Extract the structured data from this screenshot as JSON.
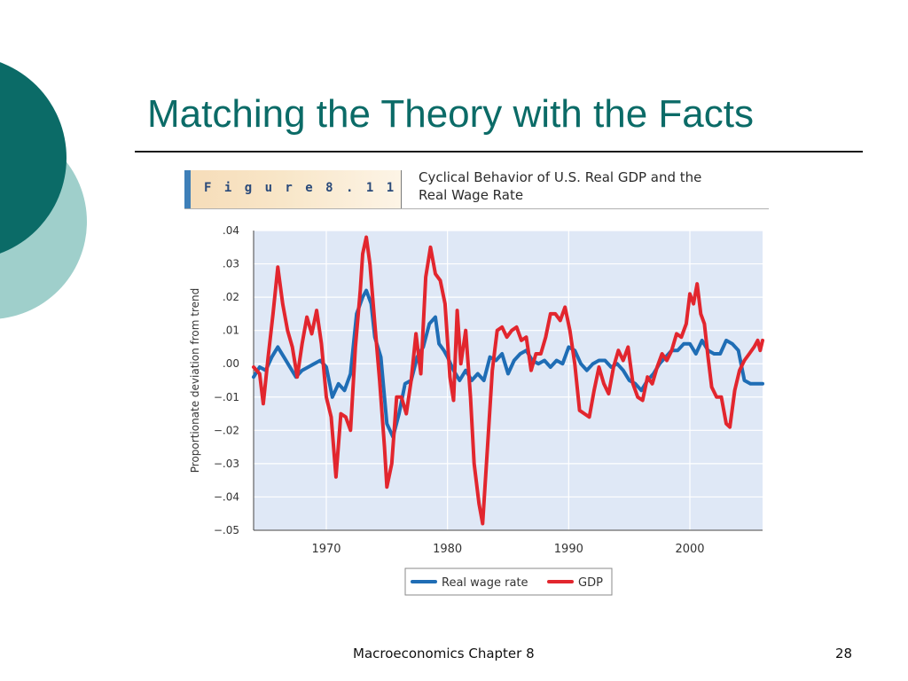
{
  "slide": {
    "title": "Matching the Theory with the Facts",
    "footer": "Macroeconomics Chapter 8",
    "page_number": "28"
  },
  "figure": {
    "label": "F i g u r e   8 . 1 1",
    "caption_line1": "Cyclical Behavior of U.S. Real GDP and the",
    "caption_line2": "Real Wage Rate"
  },
  "colors": {
    "theme_dark": "#0b6b67",
    "theme_light": "#9fcfcb",
    "plot_bg": "#dfe8f6",
    "wage": "#1f6db5",
    "gdp": "#e2262e"
  },
  "chart_data": {
    "type": "line",
    "title": "Cyclical Behavior of U.S. Real GDP and the Real Wage Rate",
    "xlabel": "",
    "ylabel": "Proportionate deviation from trend",
    "xlim": [
      1964,
      2006
    ],
    "ylim": [
      -0.05,
      0.04
    ],
    "x_ticks": [
      1970,
      1980,
      1990,
      2000
    ],
    "y_ticks": [
      {
        "value": 0.04,
        "label": ".04"
      },
      {
        "value": 0.03,
        "label": ".03"
      },
      {
        "value": 0.02,
        "label": ".02"
      },
      {
        "value": 0.01,
        "label": ".01"
      },
      {
        "value": 0.0,
        "label": ".00"
      },
      {
        "value": -0.01,
        "label": "−.01"
      },
      {
        "value": -0.02,
        "label": "−.02"
      },
      {
        "value": -0.03,
        "label": "−.03"
      },
      {
        "value": -0.04,
        "label": "−.04"
      },
      {
        "value": -0.05,
        "label": "−.05"
      }
    ],
    "grid": true,
    "legend_position": "bottom-center",
    "series": [
      {
        "name": "Real wage rate",
        "color": "#1f6db5",
        "points": [
          [
            1964.0,
            -0.004
          ],
          [
            1964.5,
            -0.001
          ],
          [
            1965.0,
            -0.002
          ],
          [
            1965.5,
            0.002
          ],
          [
            1966.0,
            0.005
          ],
          [
            1966.5,
            0.002
          ],
          [
            1967.0,
            -0.001
          ],
          [
            1967.5,
            -0.004
          ],
          [
            1968.0,
            -0.002
          ],
          [
            1968.5,
            -0.001
          ],
          [
            1969.0,
            0.0
          ],
          [
            1969.5,
            0.001
          ],
          [
            1970.0,
            -0.001
          ],
          [
            1970.5,
            -0.01
          ],
          [
            1971.0,
            -0.006
          ],
          [
            1971.5,
            -0.008
          ],
          [
            1972.0,
            -0.003
          ],
          [
            1972.5,
            0.015
          ],
          [
            1973.0,
            0.02
          ],
          [
            1973.3,
            0.022
          ],
          [
            1973.7,
            0.018
          ],
          [
            1974.0,
            0.008
          ],
          [
            1974.5,
            0.002
          ],
          [
            1975.0,
            -0.018
          ],
          [
            1975.5,
            -0.022
          ],
          [
            1976.0,
            -0.015
          ],
          [
            1976.5,
            -0.006
          ],
          [
            1977.0,
            -0.005
          ],
          [
            1977.5,
            0.002
          ],
          [
            1978.0,
            0.005
          ],
          [
            1978.5,
            0.012
          ],
          [
            1979.0,
            0.014
          ],
          [
            1979.3,
            0.006
          ],
          [
            1979.7,
            0.004
          ],
          [
            1980.0,
            0.002
          ],
          [
            1980.5,
            -0.002
          ],
          [
            1981.0,
            -0.005
          ],
          [
            1981.5,
            -0.002
          ],
          [
            1982.0,
            -0.005
          ],
          [
            1982.5,
            -0.003
          ],
          [
            1983.0,
            -0.005
          ],
          [
            1983.5,
            0.002
          ],
          [
            1984.0,
            0.001
          ],
          [
            1984.5,
            0.003
          ],
          [
            1985.0,
            -0.003
          ],
          [
            1985.5,
            0.001
          ],
          [
            1986.0,
            0.003
          ],
          [
            1986.5,
            0.004
          ],
          [
            1987.0,
            0.001
          ],
          [
            1987.5,
            0.0
          ],
          [
            1988.0,
            0.001
          ],
          [
            1988.5,
            -0.001
          ],
          [
            1989.0,
            0.001
          ],
          [
            1989.5,
            0.0
          ],
          [
            1990.0,
            0.005
          ],
          [
            1990.5,
            0.004
          ],
          [
            1991.0,
            0.0
          ],
          [
            1991.5,
            -0.002
          ],
          [
            1992.0,
            0.0
          ],
          [
            1992.5,
            0.001
          ],
          [
            1993.0,
            0.001
          ],
          [
            1993.5,
            -0.001
          ],
          [
            1994.0,
            0.0
          ],
          [
            1994.5,
            -0.002
          ],
          [
            1995.0,
            -0.005
          ],
          [
            1995.5,
            -0.006
          ],
          [
            1996.0,
            -0.008
          ],
          [
            1996.5,
            -0.005
          ],
          [
            1997.0,
            -0.003
          ],
          [
            1997.5,
            0.0
          ],
          [
            1998.0,
            0.002
          ],
          [
            1998.5,
            0.004
          ],
          [
            1999.0,
            0.004
          ],
          [
            1999.5,
            0.006
          ],
          [
            2000.0,
            0.006
          ],
          [
            2000.5,
            0.003
          ],
          [
            2001.0,
            0.007
          ],
          [
            2001.5,
            0.004
          ],
          [
            2002.0,
            0.003
          ],
          [
            2002.5,
            0.003
          ],
          [
            2003.0,
            0.007
          ],
          [
            2003.5,
            0.006
          ],
          [
            2004.0,
            0.004
          ],
          [
            2004.5,
            -0.005
          ],
          [
            2005.0,
            -0.006
          ],
          [
            2005.5,
            -0.006
          ],
          [
            2006.0,
            -0.006
          ]
        ]
      },
      {
        "name": "GDP",
        "color": "#e2262e",
        "points": [
          [
            1964.0,
            -0.001
          ],
          [
            1964.5,
            -0.003
          ],
          [
            1964.8,
            -0.012
          ],
          [
            1965.2,
            0.002
          ],
          [
            1965.6,
            0.015
          ],
          [
            1966.0,
            0.029
          ],
          [
            1966.4,
            0.018
          ],
          [
            1966.8,
            0.01
          ],
          [
            1967.2,
            0.005
          ],
          [
            1967.6,
            -0.004
          ],
          [
            1968.0,
            0.006
          ],
          [
            1968.4,
            0.014
          ],
          [
            1968.8,
            0.009
          ],
          [
            1969.2,
            0.016
          ],
          [
            1969.6,
            0.006
          ],
          [
            1970.0,
            -0.01
          ],
          [
            1970.4,
            -0.016
          ],
          [
            1970.8,
            -0.034
          ],
          [
            1971.2,
            -0.015
          ],
          [
            1971.6,
            -0.016
          ],
          [
            1972.0,
            -0.02
          ],
          [
            1972.4,
            0.005
          ],
          [
            1972.8,
            0.022
          ],
          [
            1973.0,
            0.033
          ],
          [
            1973.3,
            0.038
          ],
          [
            1973.6,
            0.03
          ],
          [
            1974.0,
            0.012
          ],
          [
            1974.4,
            -0.005
          ],
          [
            1974.8,
            -0.025
          ],
          [
            1975.0,
            -0.037
          ],
          [
            1975.4,
            -0.03
          ],
          [
            1975.8,
            -0.01
          ],
          [
            1976.2,
            -0.01
          ],
          [
            1976.6,
            -0.015
          ],
          [
            1977.0,
            -0.005
          ],
          [
            1977.4,
            0.009
          ],
          [
            1977.8,
            -0.003
          ],
          [
            1978.2,
            0.026
          ],
          [
            1978.6,
            0.035
          ],
          [
            1979.0,
            0.027
          ],
          [
            1979.4,
            0.025
          ],
          [
            1979.8,
            0.018
          ],
          [
            1980.2,
            -0.004
          ],
          [
            1980.5,
            -0.011
          ],
          [
            1980.8,
            0.016
          ],
          [
            1981.1,
            0.0
          ],
          [
            1981.5,
            0.01
          ],
          [
            1981.9,
            -0.01
          ],
          [
            1982.2,
            -0.03
          ],
          [
            1982.6,
            -0.042
          ],
          [
            1982.9,
            -0.048
          ],
          [
            1983.3,
            -0.025
          ],
          [
            1983.7,
            -0.002
          ],
          [
            1984.1,
            0.01
          ],
          [
            1984.5,
            0.011
          ],
          [
            1984.9,
            0.008
          ],
          [
            1985.3,
            0.01
          ],
          [
            1985.7,
            0.011
          ],
          [
            1986.1,
            0.007
          ],
          [
            1986.5,
            0.008
          ],
          [
            1986.9,
            -0.002
          ],
          [
            1987.3,
            0.003
          ],
          [
            1987.7,
            0.003
          ],
          [
            1988.1,
            0.008
          ],
          [
            1988.5,
            0.015
          ],
          [
            1988.9,
            0.015
          ],
          [
            1989.3,
            0.013
          ],
          [
            1989.7,
            0.017
          ],
          [
            1990.1,
            0.01
          ],
          [
            1990.5,
            0.0
          ],
          [
            1990.9,
            -0.014
          ],
          [
            1991.3,
            -0.015
          ],
          [
            1991.7,
            -0.016
          ],
          [
            1992.1,
            -0.008
          ],
          [
            1992.5,
            -0.001
          ],
          [
            1992.9,
            -0.006
          ],
          [
            1993.3,
            -0.009
          ],
          [
            1993.7,
            -0.001
          ],
          [
            1994.1,
            0.004
          ],
          [
            1994.5,
            0.001
          ],
          [
            1994.9,
            0.005
          ],
          [
            1995.3,
            -0.006
          ],
          [
            1995.7,
            -0.01
          ],
          [
            1996.1,
            -0.011
          ],
          [
            1996.5,
            -0.004
          ],
          [
            1996.9,
            -0.006
          ],
          [
            1997.3,
            -0.001
          ],
          [
            1997.7,
            0.003
          ],
          [
            1998.1,
            0.001
          ],
          [
            1998.5,
            0.004
          ],
          [
            1998.9,
            0.009
          ],
          [
            1999.3,
            0.008
          ],
          [
            1999.7,
            0.012
          ],
          [
            2000.0,
            0.021
          ],
          [
            2000.3,
            0.018
          ],
          [
            2000.6,
            0.024
          ],
          [
            2000.9,
            0.015
          ],
          [
            2001.2,
            0.012
          ],
          [
            2001.5,
            0.002
          ],
          [
            2001.8,
            -0.007
          ],
          [
            2002.2,
            -0.01
          ],
          [
            2002.6,
            -0.01
          ],
          [
            2003.0,
            -0.018
          ],
          [
            2003.3,
            -0.019
          ],
          [
            2003.7,
            -0.008
          ],
          [
            2004.1,
            -0.002
          ],
          [
            2004.5,
            0.001
          ],
          [
            2004.9,
            0.003
          ],
          [
            2005.3,
            0.005
          ],
          [
            2005.6,
            0.007
          ],
          [
            2005.8,
            0.004
          ],
          [
            2006.0,
            0.007
          ]
        ]
      }
    ]
  }
}
